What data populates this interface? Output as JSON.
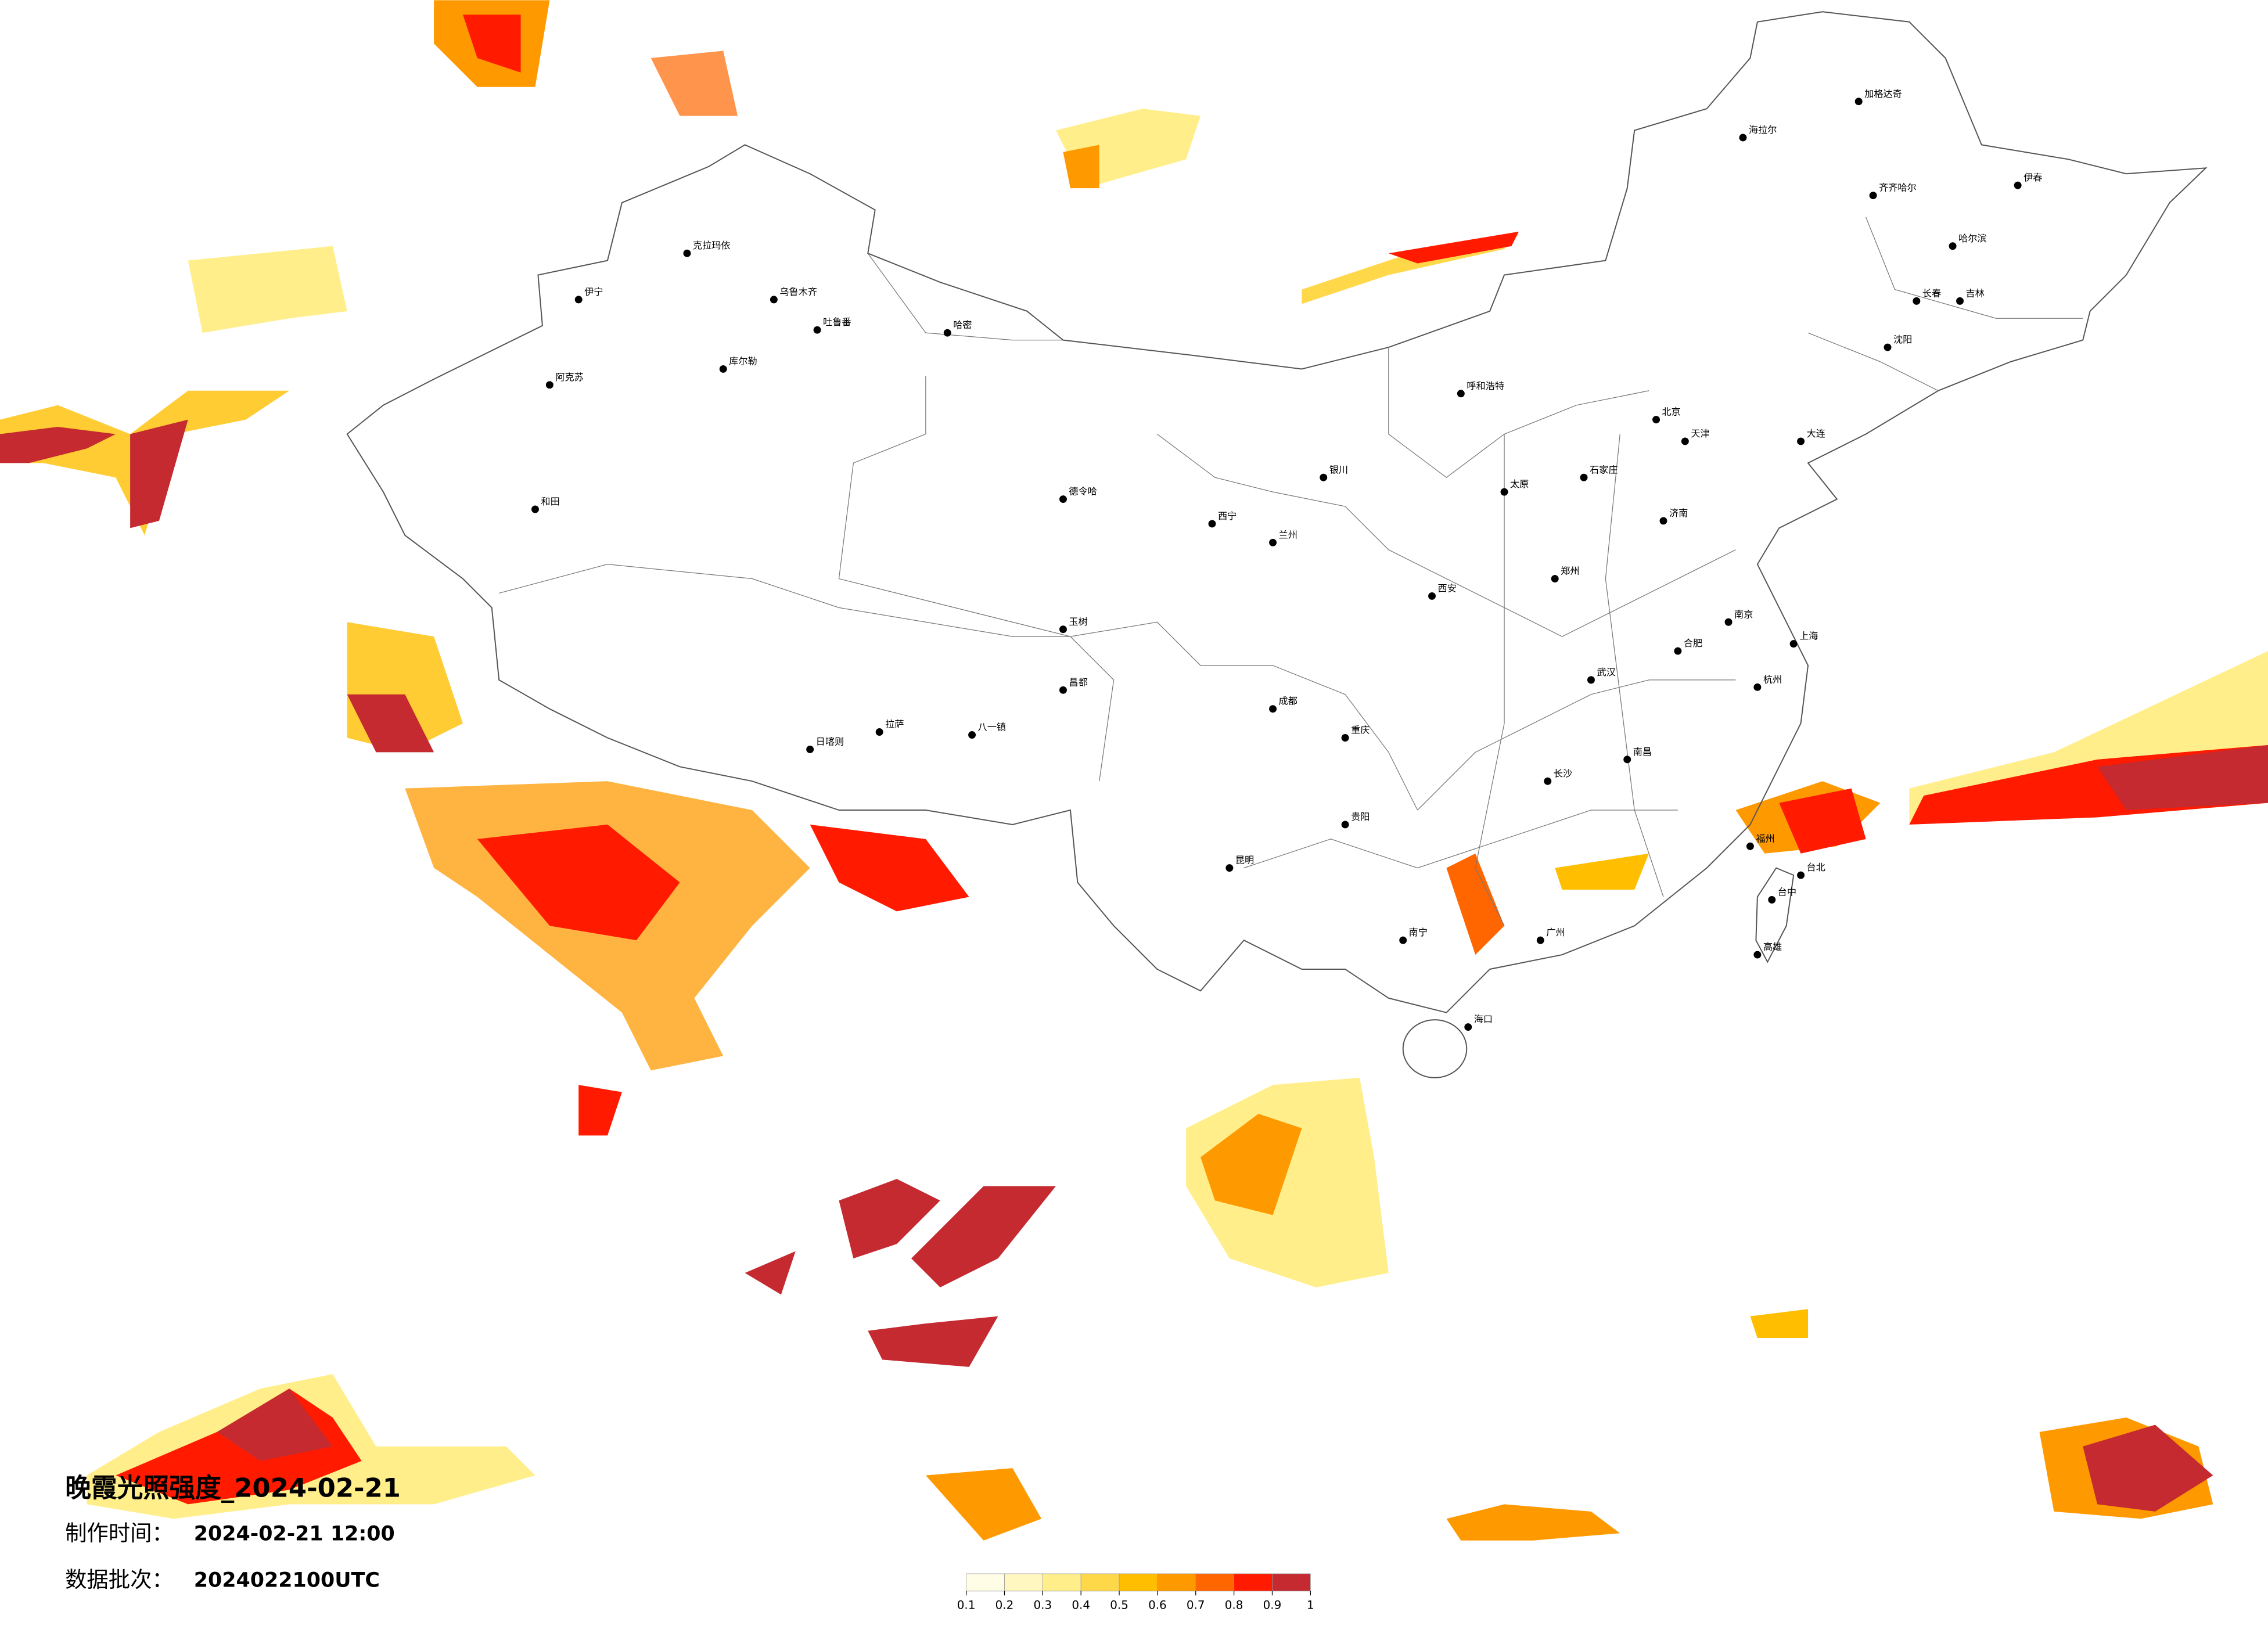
{
  "header": {
    "title": "晚霞光照强度_2024-02-21",
    "made_label": "制作时间：",
    "made_value": "2024-02-21 12:00",
    "batch_label": "数据批次：",
    "batch_value": "2024022100UTC"
  },
  "colorbar": {
    "ticks": [
      0.1,
      0.2,
      0.3,
      0.4,
      0.5,
      0.6,
      0.7,
      0.8,
      0.9,
      1
    ],
    "colors": [
      "#fffde6",
      "#fff7bf",
      "#ffee8a",
      "#ffd84a",
      "#ffbf00",
      "#ff9900",
      "#ff6600",
      "#ff1a00",
      "#c42a30"
    ]
  },
  "cities": [
    "克拉玛依",
    "伊宁",
    "乌鲁木齐",
    "吐鲁番",
    "库尔勒",
    "阿克苏",
    "和田",
    "哈密",
    "德令哈",
    "玉树",
    "昌都",
    "日喀则",
    "拉萨",
    "八一镇",
    "西宁",
    "兰州",
    "银川",
    "呼和浩特",
    "太原",
    "石家庄",
    "北京",
    "天津",
    "济南",
    "郑州",
    "西安",
    "成都",
    "重庆",
    "贵阳",
    "昆明",
    "南宁",
    "广州",
    "海口",
    "长沙",
    "武汉",
    "南昌",
    "合肥",
    "南京",
    "上海",
    "杭州",
    "福州",
    "台北",
    "台中",
    "高雄",
    "长春",
    "吉林",
    "哈尔滨",
    "齐齐哈尔",
    "海拉尔",
    "加格达奇",
    "伊春",
    "大连",
    "沈阳"
  ]
}
